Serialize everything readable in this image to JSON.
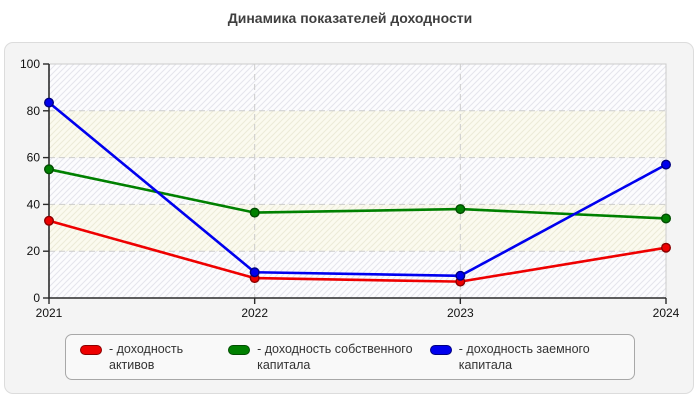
{
  "page": {
    "title": "Динамика показателей доходности"
  },
  "chart_data": {
    "type": "line",
    "title": "Динамика показателей доходности",
    "xlabel": "",
    "ylabel": "",
    "categories": [
      "2021",
      "2022",
      "2023",
      "2024"
    ],
    "series": [
      {
        "name": "доходность активов",
        "legend_label": "- доходность активов",
        "color": "#ee0000",
        "marker_border": "#8b0000",
        "values": [
          33,
          8.5,
          7,
          21.5
        ]
      },
      {
        "name": "доходность собственного капитала",
        "legend_label": "- доходность собственного капитала",
        "color": "#008000",
        "marker_border": "#014d01",
        "values": [
          55,
          36.5,
          38,
          34
        ]
      },
      {
        "name": "доходность заемного капитала",
        "legend_label": "- доходность заемного капитала",
        "color": "#0000ee",
        "marker_border": "#000080",
        "values": [
          83.5,
          11,
          9.5,
          57
        ]
      }
    ],
    "ylim": [
      0,
      100
    ],
    "yticks": [
      0,
      20,
      40,
      60,
      80,
      100
    ],
    "grid": "dashed",
    "legend_position": "bottom",
    "plot_style": {
      "band_a_bg": "#fcfcfe",
      "band_a_line": "#e4e4ec",
      "band_b_bg": "#fbfaef",
      "band_b_line": "#ecead8",
      "grid_color": "#cccccc",
      "axis_color": "#2b2b2b",
      "plot_border": "#cccccc",
      "label_color": "#111111"
    }
  }
}
